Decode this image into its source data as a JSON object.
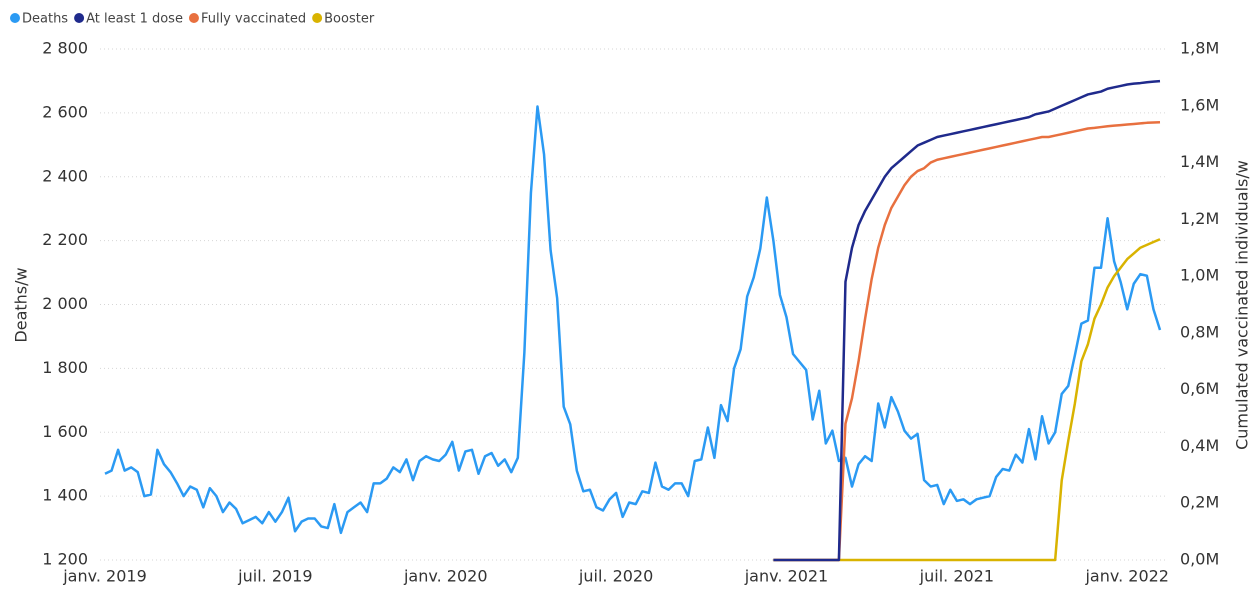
{
  "chart_data": {
    "type": "line",
    "ylabel": "Deaths/w",
    "y2label": "Cumulated vaccinated individuals/w",
    "grid": true,
    "categories": [
      "janv. 2019",
      null,
      null,
      null,
      null,
      null,
      null,
      null,
      null,
      null,
      null,
      null,
      null,
      null,
      null,
      null,
      null,
      null,
      null,
      null,
      null,
      null,
      null,
      null,
      null,
      null,
      "juil. 2019",
      null,
      null,
      null,
      null,
      null,
      null,
      null,
      null,
      null,
      null,
      null,
      null,
      null,
      null,
      null,
      null,
      null,
      null,
      null,
      null,
      null,
      null,
      null,
      null,
      null,
      "janv. 2020",
      null,
      null,
      null,
      null,
      null,
      null,
      null,
      null,
      null,
      null,
      null,
      null,
      null,
      null,
      null,
      null,
      null,
      null,
      null,
      null,
      null,
      null,
      null,
      null,
      null,
      "juil. 2020",
      null,
      null,
      null,
      null,
      null,
      null,
      null,
      null,
      null,
      null,
      null,
      null,
      null,
      null,
      null,
      null,
      null,
      null,
      null,
      null,
      null,
      null,
      null,
      null,
      null,
      "janv. 2021",
      null,
      null,
      null,
      null,
      null,
      null,
      null,
      null,
      null,
      null,
      null,
      null,
      null,
      null,
      null,
      null,
      null,
      null,
      null,
      null,
      null,
      null,
      null,
      null,
      null,
      "juil. 2021",
      null,
      null,
      null,
      null,
      null,
      null,
      null,
      null,
      null,
      null,
      null,
      null,
      null,
      null,
      null,
      null,
      null,
      null,
      null,
      null,
      null,
      null,
      null,
      null,
      null,
      "janv. 2022",
      null,
      null,
      null,
      null,
      null
    ],
    "ylim": [
      1200,
      2800
    ],
    "yticks": [
      {
        "value": 1200,
        "label": "1 200"
      },
      {
        "value": 1400,
        "label": "1 400"
      },
      {
        "value": 1600,
        "label": "1 600"
      },
      {
        "value": 1800,
        "label": "1 800"
      },
      {
        "value": 2000,
        "label": "2 000"
      },
      {
        "value": 2200,
        "label": "2 200"
      },
      {
        "value": 2400,
        "label": "2 400"
      },
      {
        "value": 2600,
        "label": "2 600"
      },
      {
        "value": 2800,
        "label": "2 800"
      }
    ],
    "y2lim": [
      0,
      1800000
    ],
    "y2ticks": [
      {
        "value": 0,
        "label": "0,0M"
      },
      {
        "value": 200000,
        "label": "0,2M"
      },
      {
        "value": 400000,
        "label": "0,4M"
      },
      {
        "value": 600000,
        "label": "0,6M"
      },
      {
        "value": 800000,
        "label": "0,8M"
      },
      {
        "value": 1000000,
        "label": "1,0M"
      },
      {
        "value": 1200000,
        "label": "1,2M"
      },
      {
        "value": 1400000,
        "label": "1,4M"
      },
      {
        "value": 1600000,
        "label": "1,6M"
      },
      {
        "value": 1800000,
        "label": "1,8M"
      }
    ],
    "series": [
      {
        "name": "Deaths",
        "color": "#2b9af3",
        "values": [
          1470,
          1480,
          1545,
          1480,
          1490,
          1475,
          1400,
          1405,
          1545,
          1500,
          1475,
          1440,
          1400,
          1430,
          1420,
          1365,
          1425,
          1400,
          1350,
          1380,
          1360,
          1315,
          1325,
          1335,
          1315,
          1350,
          1320,
          1350,
          1395,
          1290,
          1320,
          1330,
          1330,
          1305,
          1300,
          1375,
          1285,
          1350,
          1365,
          1380,
          1350,
          1440,
          1440,
          1455,
          1490,
          1475,
          1515,
          1450,
          1510,
          1525,
          1515,
          1510,
          1530,
          1570,
          1480,
          1540,
          1545,
          1470,
          1525,
          1535,
          1495,
          1515,
          1475,
          1520,
          1850,
          2350,
          2620,
          2470,
          2170,
          2020,
          1680,
          1625,
          1480,
          1415,
          1420,
          1365,
          1355,
          1390,
          1410,
          1335,
          1380,
          1375,
          1415,
          1410,
          1505,
          1430,
          1420,
          1440,
          1440,
          1400,
          1510,
          1515,
          1615,
          1520,
          1685,
          1635,
          1800,
          1860,
          2025,
          2085,
          2175,
          2335,
          2200,
          2030,
          1960,
          1845,
          1820,
          1795,
          1640,
          1730,
          1565,
          1605,
          1510,
          1520,
          1430,
          1500,
          1525,
          1510,
          1690,
          1615,
          1710,
          1665,
          1605,
          1580,
          1595,
          1450,
          1430,
          1435,
          1375,
          1420,
          1385,
          1390,
          1375,
          1390,
          1395,
          1400,
          1460,
          1485,
          1480,
          1530,
          1505,
          1610,
          1515,
          1650,
          1565,
          1600,
          1720,
          1745,
          1840,
          1940,
          1950,
          2115,
          2115,
          2270,
          2135,
          2070,
          1985,
          2065,
          2095,
          2090,
          1985,
          1920
        ]
      },
      {
        "name": "At least 1 dose",
        "color": "#1f2a8c",
        "axis": "y2",
        "values": [
          null,
          null,
          null,
          null,
          null,
          null,
          null,
          null,
          null,
          null,
          null,
          null,
          null,
          null,
          null,
          null,
          null,
          null,
          null,
          null,
          null,
          null,
          null,
          null,
          null,
          null,
          null,
          null,
          null,
          null,
          null,
          null,
          null,
          null,
          null,
          null,
          null,
          null,
          null,
          null,
          null,
          null,
          null,
          null,
          null,
          null,
          null,
          null,
          null,
          null,
          null,
          null,
          null,
          null,
          null,
          null,
          null,
          null,
          null,
          null,
          null,
          null,
          null,
          null,
          null,
          null,
          null,
          null,
          null,
          null,
          null,
          null,
          null,
          null,
          null,
          null,
          null,
          null,
          null,
          null,
          null,
          null,
          null,
          null,
          null,
          null,
          null,
          null,
          null,
          null,
          null,
          null,
          null,
          null,
          null,
          null,
          null,
          null,
          null,
          null,
          null,
          null,
          0,
          0,
          0,
          0,
          0,
          0,
          0,
          0,
          0,
          0,
          0,
          980000,
          1100000,
          1180000,
          1230000,
          1270000,
          1310000,
          1350000,
          1380000,
          1400000,
          1420000,
          1440000,
          1460000,
          1470000,
          1480000,
          1490000,
          1495000,
          1500000,
          1505000,
          1510000,
          1515000,
          1520000,
          1525000,
          1530000,
          1535000,
          1540000,
          1545000,
          1550000,
          1555000,
          1560000,
          1570000,
          1575000,
          1580000,
          1590000,
          1600000,
          1610000,
          1620000,
          1630000,
          1640000,
          1645000,
          1650000,
          1660000,
          1665000,
          1670000,
          1675000,
          1678000,
          1680000,
          1683000,
          1685000,
          1687000
        ]
      },
      {
        "name": "Fully vaccinated",
        "color": "#e8703f",
        "axis": "y2",
        "values": [
          null,
          null,
          null,
          null,
          null,
          null,
          null,
          null,
          null,
          null,
          null,
          null,
          null,
          null,
          null,
          null,
          null,
          null,
          null,
          null,
          null,
          null,
          null,
          null,
          null,
          null,
          null,
          null,
          null,
          null,
          null,
          null,
          null,
          null,
          null,
          null,
          null,
          null,
          null,
          null,
          null,
          null,
          null,
          null,
          null,
          null,
          null,
          null,
          null,
          null,
          null,
          null,
          null,
          null,
          null,
          null,
          null,
          null,
          null,
          null,
          null,
          null,
          null,
          null,
          null,
          null,
          null,
          null,
          null,
          null,
          null,
          null,
          null,
          null,
          null,
          null,
          null,
          null,
          null,
          null,
          null,
          null,
          null,
          null,
          null,
          null,
          null,
          null,
          null,
          null,
          null,
          null,
          null,
          null,
          null,
          null,
          null,
          null,
          null,
          null,
          null,
          null,
          0,
          0,
          0,
          0,
          0,
          0,
          0,
          0,
          0,
          0,
          0,
          480000,
          570000,
          700000,
          850000,
          990000,
          1100000,
          1180000,
          1240000,
          1280000,
          1320000,
          1350000,
          1370000,
          1380000,
          1400000,
          1410000,
          1415000,
          1420000,
          1425000,
          1430000,
          1435000,
          1440000,
          1445000,
          1450000,
          1455000,
          1460000,
          1465000,
          1470000,
          1475000,
          1480000,
          1485000,
          1490000,
          1490000,
          1495000,
          1500000,
          1505000,
          1510000,
          1515000,
          1520000,
          1522000,
          1525000,
          1528000,
          1530000,
          1532000,
          1534000,
          1536000,
          1538000,
          1540000,
          1541000,
          1542000
        ]
      },
      {
        "name": "Booster",
        "color": "#d9b300",
        "axis": "y2",
        "values": [
          null,
          null,
          null,
          null,
          null,
          null,
          null,
          null,
          null,
          null,
          null,
          null,
          null,
          null,
          null,
          null,
          null,
          null,
          null,
          null,
          null,
          null,
          null,
          null,
          null,
          null,
          null,
          null,
          null,
          null,
          null,
          null,
          null,
          null,
          null,
          null,
          null,
          null,
          null,
          null,
          null,
          null,
          null,
          null,
          null,
          null,
          null,
          null,
          null,
          null,
          null,
          null,
          null,
          null,
          null,
          null,
          null,
          null,
          null,
          null,
          null,
          null,
          null,
          null,
          null,
          null,
          null,
          null,
          null,
          null,
          null,
          null,
          null,
          null,
          null,
          null,
          null,
          null,
          null,
          null,
          null,
          null,
          null,
          null,
          null,
          null,
          null,
          null,
          null,
          null,
          null,
          null,
          null,
          null,
          null,
          null,
          null,
          null,
          null,
          null,
          null,
          null,
          0,
          0,
          0,
          0,
          0,
          0,
          0,
          0,
          0,
          0,
          0,
          0,
          0,
          0,
          0,
          0,
          0,
          0,
          0,
          0,
          0,
          0,
          0,
          0,
          0,
          0,
          0,
          0,
          0,
          0,
          0,
          0,
          0,
          0,
          0,
          0,
          0,
          0,
          0,
          0,
          0,
          0,
          0,
          0,
          280000,
          420000,
          550000,
          700000,
          760000,
          850000,
          900000,
          960000,
          1000000,
          1030000,
          1060000,
          1080000,
          1100000,
          1110000,
          1120000,
          1130000
        ]
      }
    ]
  }
}
